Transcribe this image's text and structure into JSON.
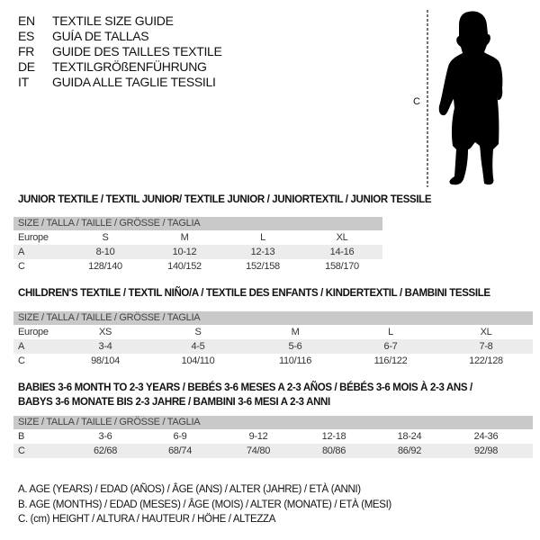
{
  "title_lines": [
    {
      "code": "EN",
      "text": "TEXTILE SIZE GUIDE"
    },
    {
      "code": "ES",
      "text": "GUÍA DE TALLAS"
    },
    {
      "code": "FR",
      "text": "GUIDE DES TAILLES TEXTILE"
    },
    {
      "code": "DE",
      "text": "TEXTILGRÖßENFÜHRUNG"
    },
    {
      "code": "IT",
      "text": "GUIDA ALLE TAGLIE TESSILI"
    }
  ],
  "figure": {
    "label": "C",
    "icon": "child-silhouette-icon"
  },
  "tables": [
    {
      "title": "JUNIOR TEXTILE / TEXTIL JUNIOR/ TEXTILE JUNIOR / JUNIORTEXTIL / JUNIOR TESSILE",
      "header": "SIZE / TALLA / TAILLE / GRÖSSE / TAGLIA",
      "rows": [
        {
          "label": "Europe",
          "values": [
            "S",
            "M",
            "L",
            "XL"
          ]
        },
        {
          "label": "A",
          "values": [
            "8-10",
            "10-12",
            "12-13",
            "14-16"
          ]
        },
        {
          "label": "C",
          "values": [
            "128/140",
            "140/152",
            "152/158",
            "158/170"
          ]
        }
      ]
    },
    {
      "title": "CHILDREN'S TEXTILE / TEXTIL NIÑO/A / TEXTILE DES ENFANTS / KINDERTEXTIL / BAMBINI TESSILE",
      "header": "SIZE / TALLA / TAILLE / GRÖSSE / TAGLIA",
      "rows": [
        {
          "label": "Europe",
          "values": [
            "XS",
            "S",
            "M",
            "L",
            "XL"
          ]
        },
        {
          "label": "A",
          "values": [
            "3-4",
            "4-5",
            "5-6",
            "6-7",
            "7-8"
          ]
        },
        {
          "label": "C",
          "values": [
            "98/104",
            "104/110",
            "110/116",
            "116/122",
            "122/128"
          ]
        }
      ]
    },
    {
      "title": "BABIES 3-6 MONTH TO 2-3 YEARS / BEBÉS 3-6 MESES A 2-3 AÑOS / BÉBÉS 3-6 MOIS À 2-3 ANS /",
      "title2": "BABYS 3-6 MONATE BIS 2-3 JAHRE / BAMBINI 3-6 MESI A 2-3 ANNI",
      "header": "SIZE / TALLA / TAILLE / GRÖSSE / TAGLIA",
      "rows": [
        {
          "label": "B",
          "values": [
            "3-6",
            "6-9",
            "9-12",
            "12-18",
            "18-24",
            "24-36"
          ]
        },
        {
          "label": "C",
          "values": [
            "62/68",
            "68/74",
            "74/80",
            "80/86",
            "86/92",
            "92/98"
          ]
        }
      ]
    }
  ],
  "legend": [
    "A. AGE (YEARS) / EDAD (AÑOS) / ÂGE (ANS) / ALTER (JAHRE) / ETÀ (ANNI)",
    "B. AGE (MONTHS) / EDAD (MESES) / ÂGE (MOIS) / ALTER (MONATE) / ETÀ (MESI)",
    "C. (cm) HEIGHT / ALTURA / HAUTEUR / HÖHE / ALTEZZA"
  ]
}
